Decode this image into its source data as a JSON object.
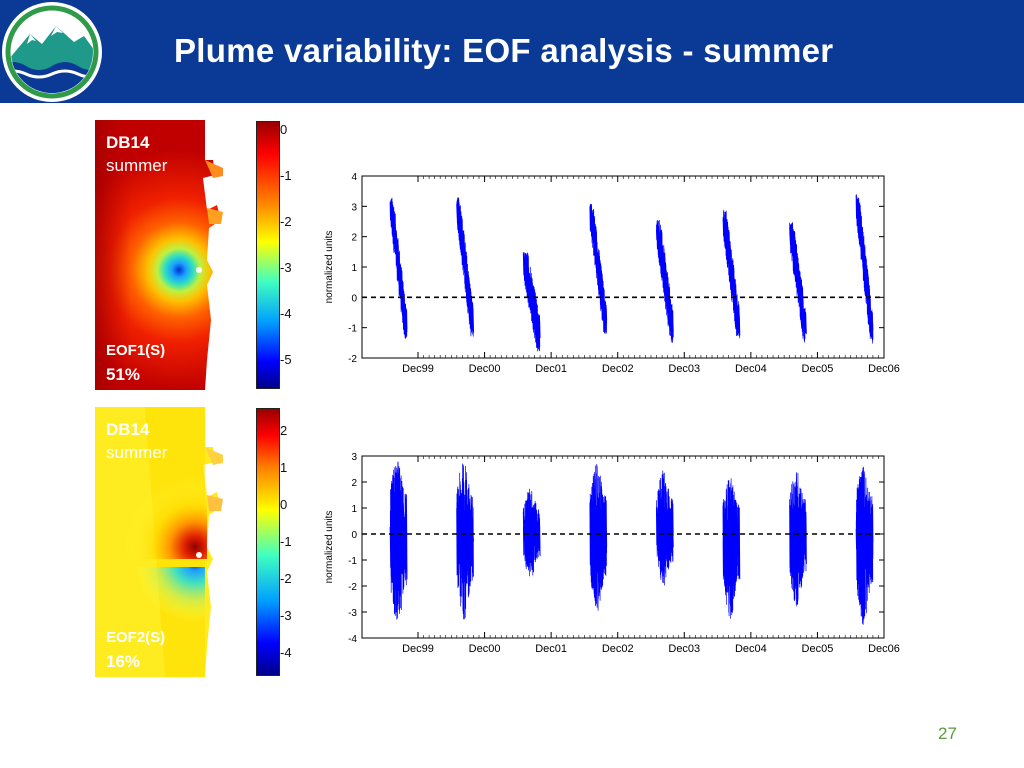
{
  "slide": {
    "title": "Plume variability: EOF analysis - summer",
    "page_number": "27"
  },
  "maps": [
    {
      "station": "DB14",
      "season": "summer",
      "mode": "EOF1(S)",
      "variance": "51%",
      "colorbar_ticks": [
        "0",
        "-1",
        "-2",
        "-3",
        "-4",
        "-5"
      ]
    },
    {
      "station": "DB14",
      "season": "summer",
      "mode": "EOF2(S)",
      "variance": "16%",
      "colorbar_ticks": [
        "2",
        "1",
        "0",
        "-1",
        "-2",
        "-3",
        "-4"
      ]
    }
  ],
  "chart_data": [
    {
      "type": "line",
      "title": "",
      "xlabel": "",
      "ylabel": "normalized units",
      "ylim": [
        -2,
        4
      ],
      "yticks": [
        -2,
        -1,
        0,
        1,
        2,
        3,
        4
      ],
      "xtick_labels": [
        "Dec99",
        "Dec00",
        "Dec01",
        "Dec02",
        "Dec03",
        "Dec04",
        "Dec05",
        "Dec06"
      ],
      "reference_line": 0,
      "series_color": "#0000ff",
      "note_on_structure": "",
      "bursts": [
        {
          "period": "summer 1999",
          "max": 3.3,
          "min": -1.4
        },
        {
          "period": "summer 2000",
          "max": 3.3,
          "min": -1.3
        },
        {
          "period": "summer 2001",
          "max": 1.5,
          "min": -1.8
        },
        {
          "period": "summer 2002",
          "max": 3.1,
          "min": -1.2
        },
        {
          "period": "summer 2003",
          "max": 2.6,
          "min": -1.5
        },
        {
          "period": "summer 2004",
          "max": 2.9,
          "min": -1.4
        },
        {
          "period": "summer 2005",
          "max": 2.5,
          "min": -1.5
        },
        {
          "period": "summer 2006",
          "max": 3.4,
          "min": -1.6
        }
      ]
    },
    {
      "type": "line",
      "title": "",
      "xlabel": "",
      "ylabel": "normalized units",
      "ylim": [
        -4,
        3
      ],
      "yticks": [
        -4,
        -3,
        -2,
        -1,
        0,
        1,
        2,
        3
      ],
      "xtick_labels": [
        "Dec99",
        "Dec00",
        "Dec01",
        "Dec02",
        "Dec03",
        "Dec04",
        "Dec05",
        "Dec06"
      ],
      "reference_line": 0,
      "series_color": "#0000ff",
      "bursts": [
        {
          "period": "summer 1999",
          "max": 2.9,
          "min": -3.6
        },
        {
          "period": "summer 2000",
          "max": 2.8,
          "min": -3.3
        },
        {
          "period": "summer 2001",
          "max": 1.8,
          "min": -1.7
        },
        {
          "period": "summer 2002",
          "max": 2.7,
          "min": -3.0
        },
        {
          "period": "summer 2003",
          "max": 2.5,
          "min": -2.0
        },
        {
          "period": "summer 2004",
          "max": 2.2,
          "min": -3.3
        },
        {
          "period": "summer 2005",
          "max": 2.5,
          "min": -2.8
        },
        {
          "period": "summer 2006",
          "max": 2.7,
          "min": -3.5
        }
      ]
    }
  ]
}
